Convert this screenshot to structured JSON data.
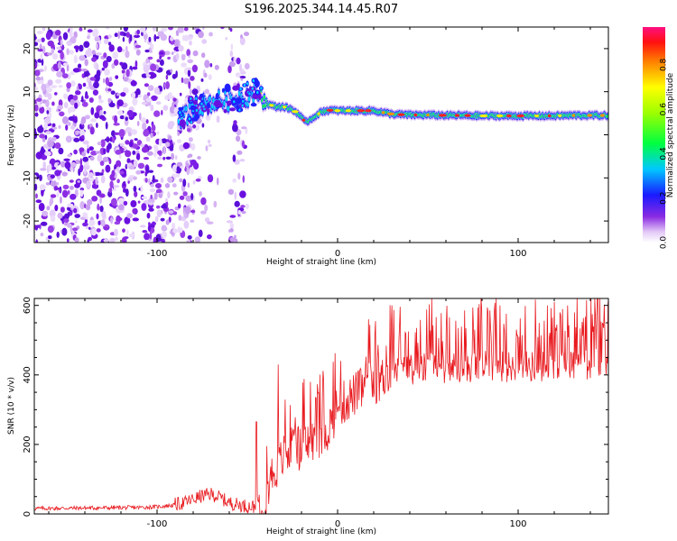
{
  "title": "S196.2025.344.14.45.R07",
  "chart_data": [
    {
      "type": "heatmap",
      "title": "S196.2025.344.14.45.R07",
      "xlabel": "Height of straight line (km)",
      "ylabel": "Frequency (Hz)",
      "xlim": [
        -168,
        150
      ],
      "ylim": [
        -25,
        25
      ],
      "xticks": [
        -100,
        0,
        100
      ],
      "xtick_labels": [
        "-100",
        "0",
        "100"
      ],
      "yticks": [
        -20,
        -10,
        0,
        10,
        20
      ],
      "ytick_labels": [
        "-20",
        "-10",
        "0",
        "10",
        "20"
      ],
      "ridge": {
        "x": [
          -88,
          -85,
          -80,
          -75,
          -70,
          -65,
          -60,
          -55,
          -50,
          -45,
          -42,
          -38,
          -34,
          -30,
          -26,
          -22,
          -18,
          -15,
          -12,
          -8,
          -4,
          0,
          5,
          10,
          20,
          30,
          40,
          50,
          60,
          70,
          80,
          90,
          100,
          110,
          120,
          130,
          140,
          148
        ],
        "freq": [
          3,
          4,
          6,
          7,
          7.5,
          8,
          8,
          8.5,
          9,
          10,
          9,
          7,
          6.5,
          6.5,
          6,
          5,
          3,
          3.5,
          4.5,
          5.5,
          5.7,
          5.6,
          5.6,
          5.6,
          5.6,
          4.8,
          4.6,
          4.6,
          4.5,
          4.5,
          4.4,
          4.4,
          4.4,
          4.4,
          4.4,
          4.5,
          4.5,
          4.5
        ]
      },
      "colorbar": {
        "label": "Normalized spectral amplitude",
        "range": [
          0.0,
          0.97
        ],
        "ticks": [
          0.0,
          0.2,
          0.4,
          0.6,
          0.8
        ],
        "tick_labels": [
          "0.0",
          "0.2",
          "0.4",
          "0.6",
          "0.8"
        ]
      }
    },
    {
      "type": "line",
      "xlabel": "Height of straight line (km)",
      "ylabel": "SNR (10 * v/v)",
      "xlim": [
        -168,
        150
      ],
      "ylim": [
        0,
        620
      ],
      "xticks": [
        -100,
        0,
        100
      ],
      "xtick_labels": [
        "-100",
        "0",
        "100"
      ],
      "yticks": [
        0,
        200,
        400,
        600
      ],
      "ytick_labels": [
        "0",
        "200",
        "400",
        "600"
      ],
      "series": [
        {
          "name": "SNR",
          "color": "#e8191e",
          "x": [
            -168,
            -150,
            -130,
            -110,
            -100,
            -90,
            -85,
            -80,
            -75,
            -70,
            -65,
            -60,
            -55,
            -50,
            -45,
            -43,
            -40,
            -37,
            -35,
            -32,
            -30,
            -25,
            -20,
            -15,
            -10,
            -5,
            0,
            5,
            10,
            15,
            20,
            25,
            30,
            35,
            40,
            50,
            60,
            70,
            80,
            90,
            100,
            110,
            120,
            130,
            140,
            150
          ],
          "y": [
            15,
            16,
            17,
            18,
            20,
            25,
            30,
            40,
            50,
            55,
            45,
            30,
            25,
            20,
            18,
            20,
            40,
            100,
            120,
            140,
            160,
            175,
            185,
            200,
            210,
            240,
            300,
            320,
            340,
            360,
            370,
            385,
            400,
            405,
            410,
            415,
            415,
            418,
            420,
            420,
            420,
            420,
            420,
            425,
            425,
            430
          ],
          "spikes": [
            {
              "x": -33,
              "y": 430
            },
            {
              "x": -45,
              "y": 265
            },
            {
              "x": -15,
              "y": 380
            },
            {
              "x": 17,
              "y": 560
            },
            {
              "x": 30,
              "y": 600
            },
            {
              "x": 52,
              "y": 620
            },
            {
              "x": 90,
              "y": 600
            },
            {
              "x": 120,
              "y": 610
            },
            {
              "x": 138,
              "y": 615
            }
          ]
        }
      ]
    }
  ]
}
